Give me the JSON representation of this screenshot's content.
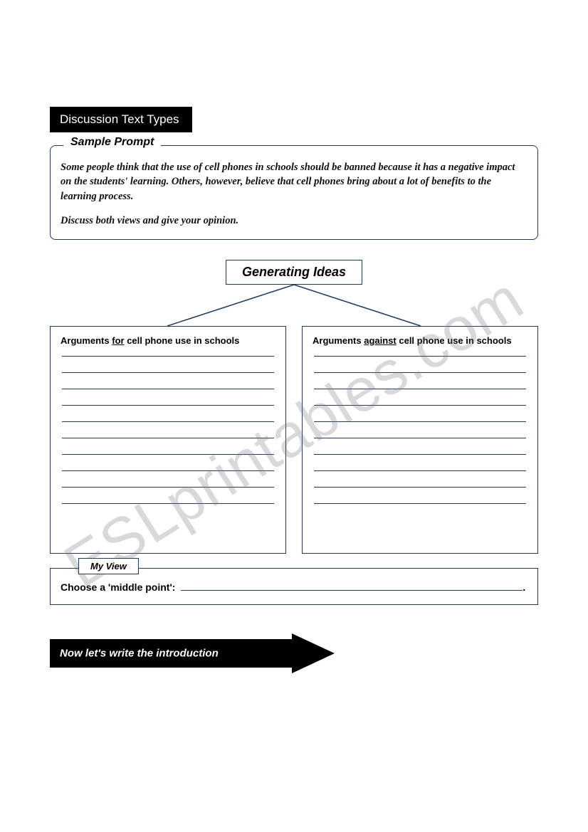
{
  "title": "Discussion Text Types",
  "sample_prompt": {
    "legend": "Sample Prompt",
    "para1": "Some people think that the use of cell phones in schools should be banned because it has a negative impact on the students' learning. Others, however, believe that cell phones bring about a lot of benefits to the learning process.",
    "para2": "Discuss both views and give your opinion."
  },
  "generating_ideas": {
    "heading": "Generating Ideas",
    "col_for": {
      "prefix": "Arguments ",
      "emph": "for",
      "suffix": " cell phone use in schools"
    },
    "col_against": {
      "prefix": "Arguments ",
      "emph": "against",
      "suffix": " cell phone use in schools"
    },
    "rule_count": 10
  },
  "my_view": {
    "legend": "My View",
    "prompt": "Choose a 'middle point':",
    "tail": "."
  },
  "arrow_text": "Now let's write the introduction",
  "watermark": "ESLprintables.com",
  "colors": {
    "border": "#1f3a5f",
    "black": "#000000",
    "white": "#ffffff"
  }
}
